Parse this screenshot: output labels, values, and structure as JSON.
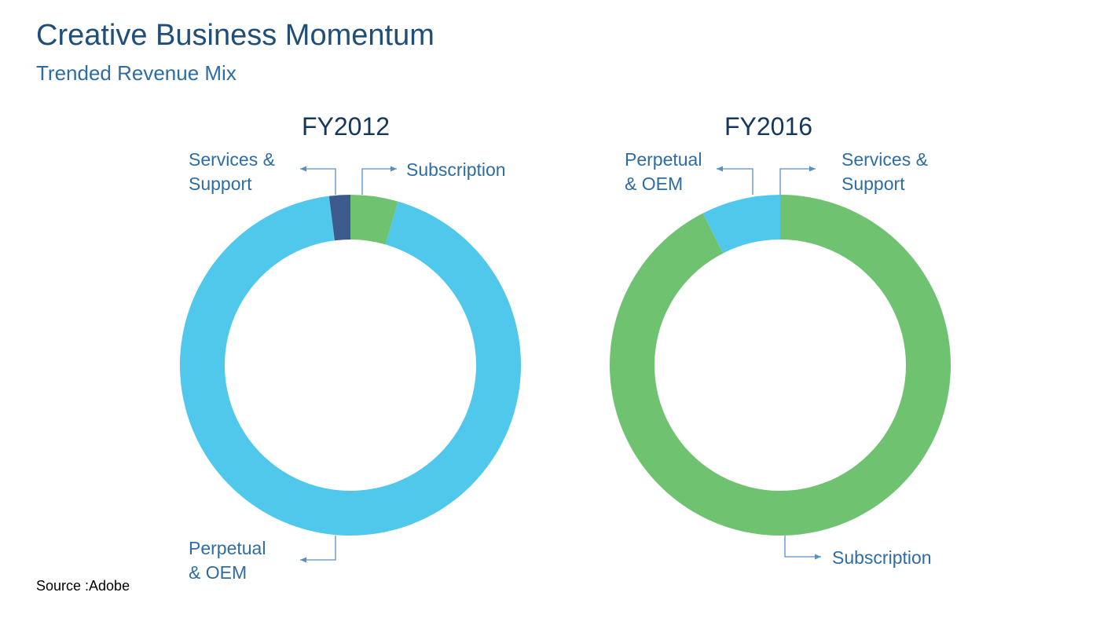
{
  "slide": {
    "title": "Creative Business Momentum",
    "subtitle": "Trended Revenue Mix",
    "source": "Source :Adobe"
  },
  "colors": {
    "perpetual_oem": "#4fc8ec",
    "subscription": "#6fc270",
    "services_support": "#3d5a8c",
    "leader_line": "#5b8ec4"
  },
  "chart_data": [
    {
      "type": "pie",
      "title": "FY2012",
      "donut": true,
      "slices": [
        {
          "key": "subscription",
          "label": [
            "Subscription"
          ],
          "value": 4.5,
          "color": "#6fc270"
        },
        {
          "key": "perpetual_oem",
          "label": [
            "Perpetual",
            "& OEM"
          ],
          "value": 93.5,
          "color": "#4fc8ec"
        },
        {
          "key": "services_support",
          "label": [
            "Services &",
            "Support"
          ],
          "value": 2.0,
          "color": "#3d5a8c"
        }
      ]
    },
    {
      "type": "pie",
      "title": "FY2016",
      "donut": true,
      "slices": [
        {
          "key": "services_support",
          "label": [
            "Services &",
            "Support"
          ],
          "value": 0.0,
          "color": "#3d5a8c"
        },
        {
          "key": "subscription",
          "label": [
            "Subscription"
          ],
          "value": 92.5,
          "color": "#6fc270"
        },
        {
          "key": "perpetual_oem",
          "label": [
            "Perpetual",
            "& OEM"
          ],
          "value": 7.5,
          "color": "#4fc8ec"
        }
      ]
    }
  ]
}
